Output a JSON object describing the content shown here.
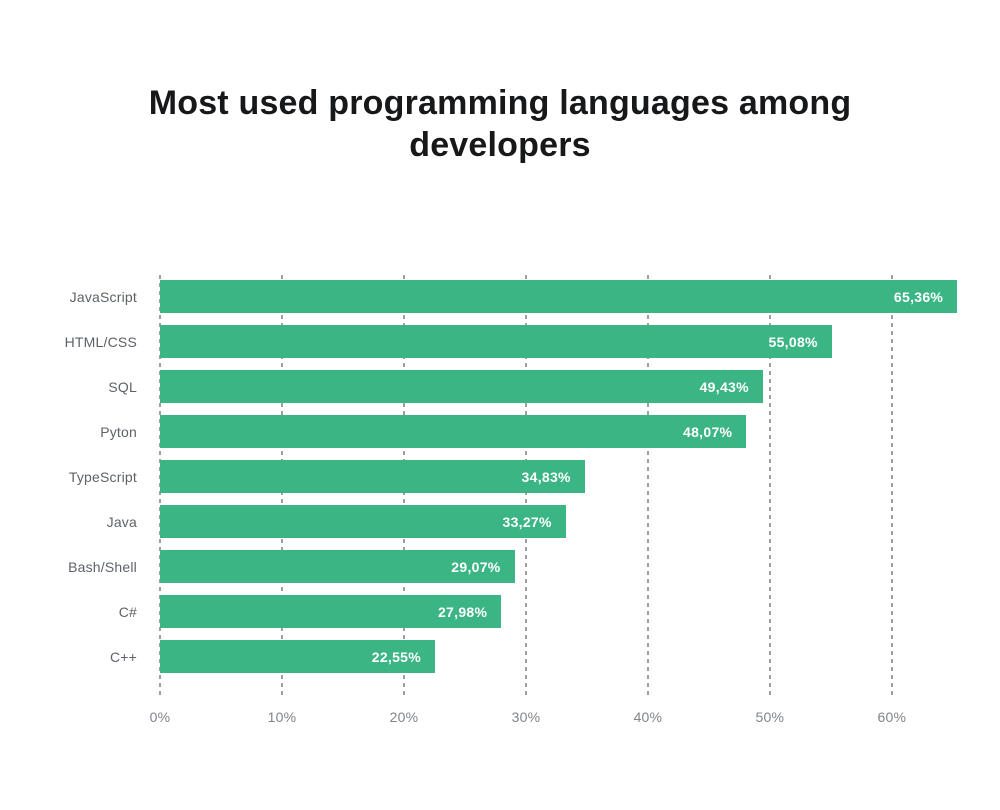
{
  "page": {
    "background": "#ffffff"
  },
  "chart_data": {
    "type": "bar",
    "orientation": "horizontal",
    "title": "Most used programming languages among developers",
    "categories": [
      "JavaScript",
      "HTML/CSS",
      "SQL",
      "Pyton",
      "TypeScript",
      "Java",
      "Bash/Shell",
      "C#",
      "C++"
    ],
    "values": [
      65.36,
      55.08,
      49.43,
      48.07,
      34.83,
      33.27,
      29.07,
      27.98,
      22.55
    ],
    "value_labels": [
      "65,36%",
      "55,08%",
      "49,43%",
      "48,07%",
      "34,83%",
      "33,27%",
      "29,07%",
      "27,98%",
      "22,55%"
    ],
    "x_ticks": [
      {
        "value": 0,
        "label": "0%"
      },
      {
        "value": 10,
        "label": "10%"
      },
      {
        "value": 20,
        "label": "20%"
      },
      {
        "value": 30,
        "label": "30%"
      },
      {
        "value": 40,
        "label": "40%"
      },
      {
        "value": 50,
        "label": "50%"
      },
      {
        "value": 60,
        "label": "60%"
      }
    ],
    "xlim": [
      0,
      66
    ],
    "grid": "dashed-vertical",
    "legend": "none",
    "colors": {
      "bar": "#3cb585",
      "value_label": "#ffffff",
      "category_label": "#5d6268",
      "tick_label": "#7f858c",
      "gridline": "#9aa0a6",
      "title": "#17181a"
    }
  }
}
